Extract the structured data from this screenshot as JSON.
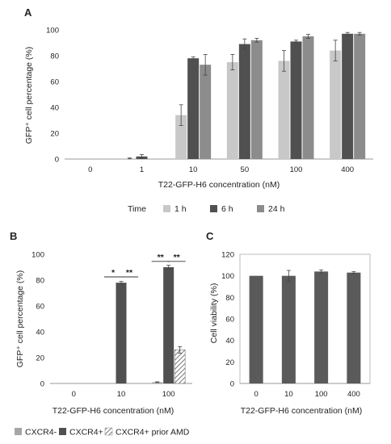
{
  "chart_data": [
    {
      "panel": "A",
      "type": "bar",
      "xlabel": "T22-GFP-H6 concentration (nM)",
      "ylabel": "GFP⁺ cell percentage (%)",
      "ylim": [
        0,
        100
      ],
      "yticks": [
        "0",
        "20",
        "40",
        "60",
        "80",
        "100"
      ],
      "grid": false,
      "categories": [
        "0",
        "1",
        "10",
        "50",
        "100",
        "400"
      ],
      "legend_title": "Time",
      "legend_position": "bottom",
      "colors": [
        "#c8c8c8",
        "#505050",
        "#8c8c8c"
      ],
      "series": [
        {
          "name": "1 h",
          "values": [
            0,
            0.5,
            34,
            75,
            76,
            84
          ],
          "errors": [
            0,
            0.3,
            8,
            6,
            8,
            8
          ]
        },
        {
          "name": "6 h",
          "values": [
            0,
            2,
            78,
            89,
            91,
            97
          ],
          "errors": [
            0,
            1.5,
            1,
            4,
            1,
            1
          ]
        },
        {
          "name": "24 h",
          "values": [
            0,
            0,
            73,
            92,
            95,
            97
          ],
          "errors": [
            0,
            0,
            8,
            1.5,
            1.5,
            1
          ]
        }
      ]
    },
    {
      "panel": "B",
      "type": "bar",
      "xlabel": "T22-GFP-H6 concentration (nM)",
      "ylabel": "GFP⁺ cell percentage (%)",
      "ylim": [
        0,
        100
      ],
      "yticks": [
        "0",
        "20",
        "40",
        "60",
        "80",
        "100"
      ],
      "grid": false,
      "categories": [
        "0",
        "10",
        "100"
      ],
      "legend_position": "bottom",
      "colors": [
        "#a6a6a6",
        "#505050",
        "hatched"
      ],
      "series": [
        {
          "name": "CXCR4-",
          "values": [
            0,
            0,
            1
          ],
          "errors": [
            0,
            0,
            0.3
          ]
        },
        {
          "name": "CXCR4+",
          "values": [
            0,
            78,
            90
          ],
          "errors": [
            0,
            1,
            1.5
          ]
        },
        {
          "name": "CXCR4+ prior AMD",
          "values": [
            0,
            0,
            26
          ],
          "errors": [
            0,
            0,
            2.5
          ]
        }
      ],
      "significance": [
        "*",
        "**",
        "**",
        "**"
      ]
    },
    {
      "panel": "C",
      "type": "bar",
      "xlabel": "T22-GFP-H6 concentration (nM)",
      "ylabel": "Cell viability (%)",
      "ylim": [
        0,
        120
      ],
      "yticks": [
        "0",
        "20",
        "40",
        "60",
        "80",
        "100",
        "120"
      ],
      "grid": false,
      "categories": [
        "0",
        "10",
        "100",
        "400"
      ],
      "colors": [
        "#5a5a5a"
      ],
      "series": [
        {
          "values": [
            100,
            100,
            104,
            103
          ],
          "errors": [
            0,
            5,
            1.5,
            1
          ]
        }
      ]
    }
  ]
}
